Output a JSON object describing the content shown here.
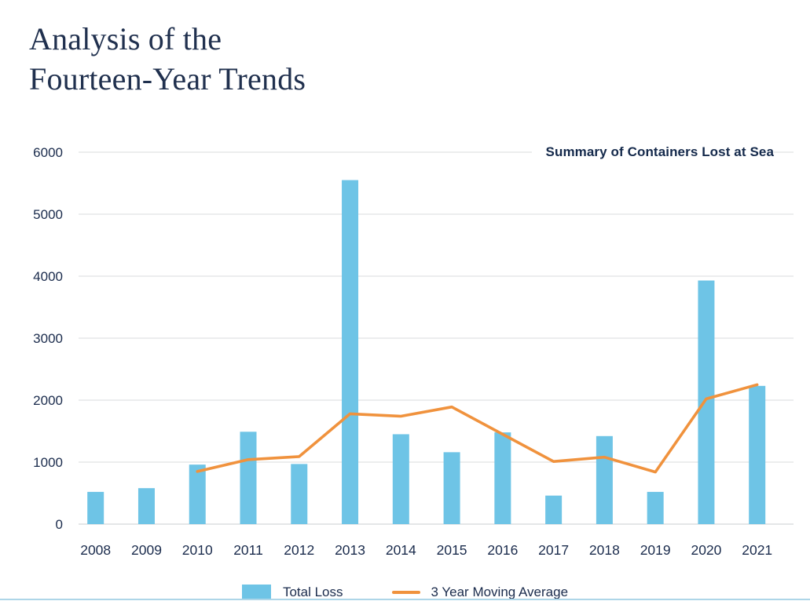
{
  "page": {
    "title_line1": "Analysis of the",
    "title_line2": "Fourteen-Year Trends"
  },
  "chart_data": {
    "type": "bar",
    "title": "Summary of Containers Lost at Sea",
    "categories": [
      "2008",
      "2009",
      "2010",
      "2011",
      "2012",
      "2013",
      "2014",
      "2015",
      "2016",
      "2017",
      "2018",
      "2019",
      "2020",
      "2021"
    ],
    "series": [
      {
        "name": "Total Loss",
        "type": "bar",
        "color": "#6ec4e6",
        "values": [
          520,
          580,
          960,
          1490,
          970,
          5550,
          1450,
          1160,
          1480,
          460,
          1420,
          520,
          3930,
          2230
        ]
      },
      {
        "name": "3 Year Moving Average",
        "type": "line",
        "color": "#f0923d",
        "values": [
          null,
          null,
          850,
          1040,
          1090,
          1780,
          1740,
          1890,
          1450,
          1010,
          1080,
          840,
          2020,
          2250
        ]
      }
    ],
    "xlabel": "",
    "ylabel": "",
    "ylim": [
      0,
      6000
    ],
    "ytick_step": 1000,
    "yticks": [
      "0",
      "1000",
      "2000",
      "3000",
      "4000",
      "5000",
      "6000"
    ],
    "grid": "horizontal",
    "legend_position": "bottom-center"
  },
  "legend": {
    "items": [
      {
        "label": "Total Loss",
        "swatch": "bar",
        "color": "#6ec4e6"
      },
      {
        "label": "3 Year Moving Average",
        "swatch": "line",
        "color": "#f0923d"
      }
    ]
  },
  "colors": {
    "bar_blue": "#6ec4e6",
    "line_orange": "#f0923d",
    "text_navy": "#1a2b4c",
    "title_navy": "#20304e",
    "gridline": "#e6e7e9",
    "bottom_rule_blue": "#aed6e8",
    "background": "#ffffff"
  }
}
